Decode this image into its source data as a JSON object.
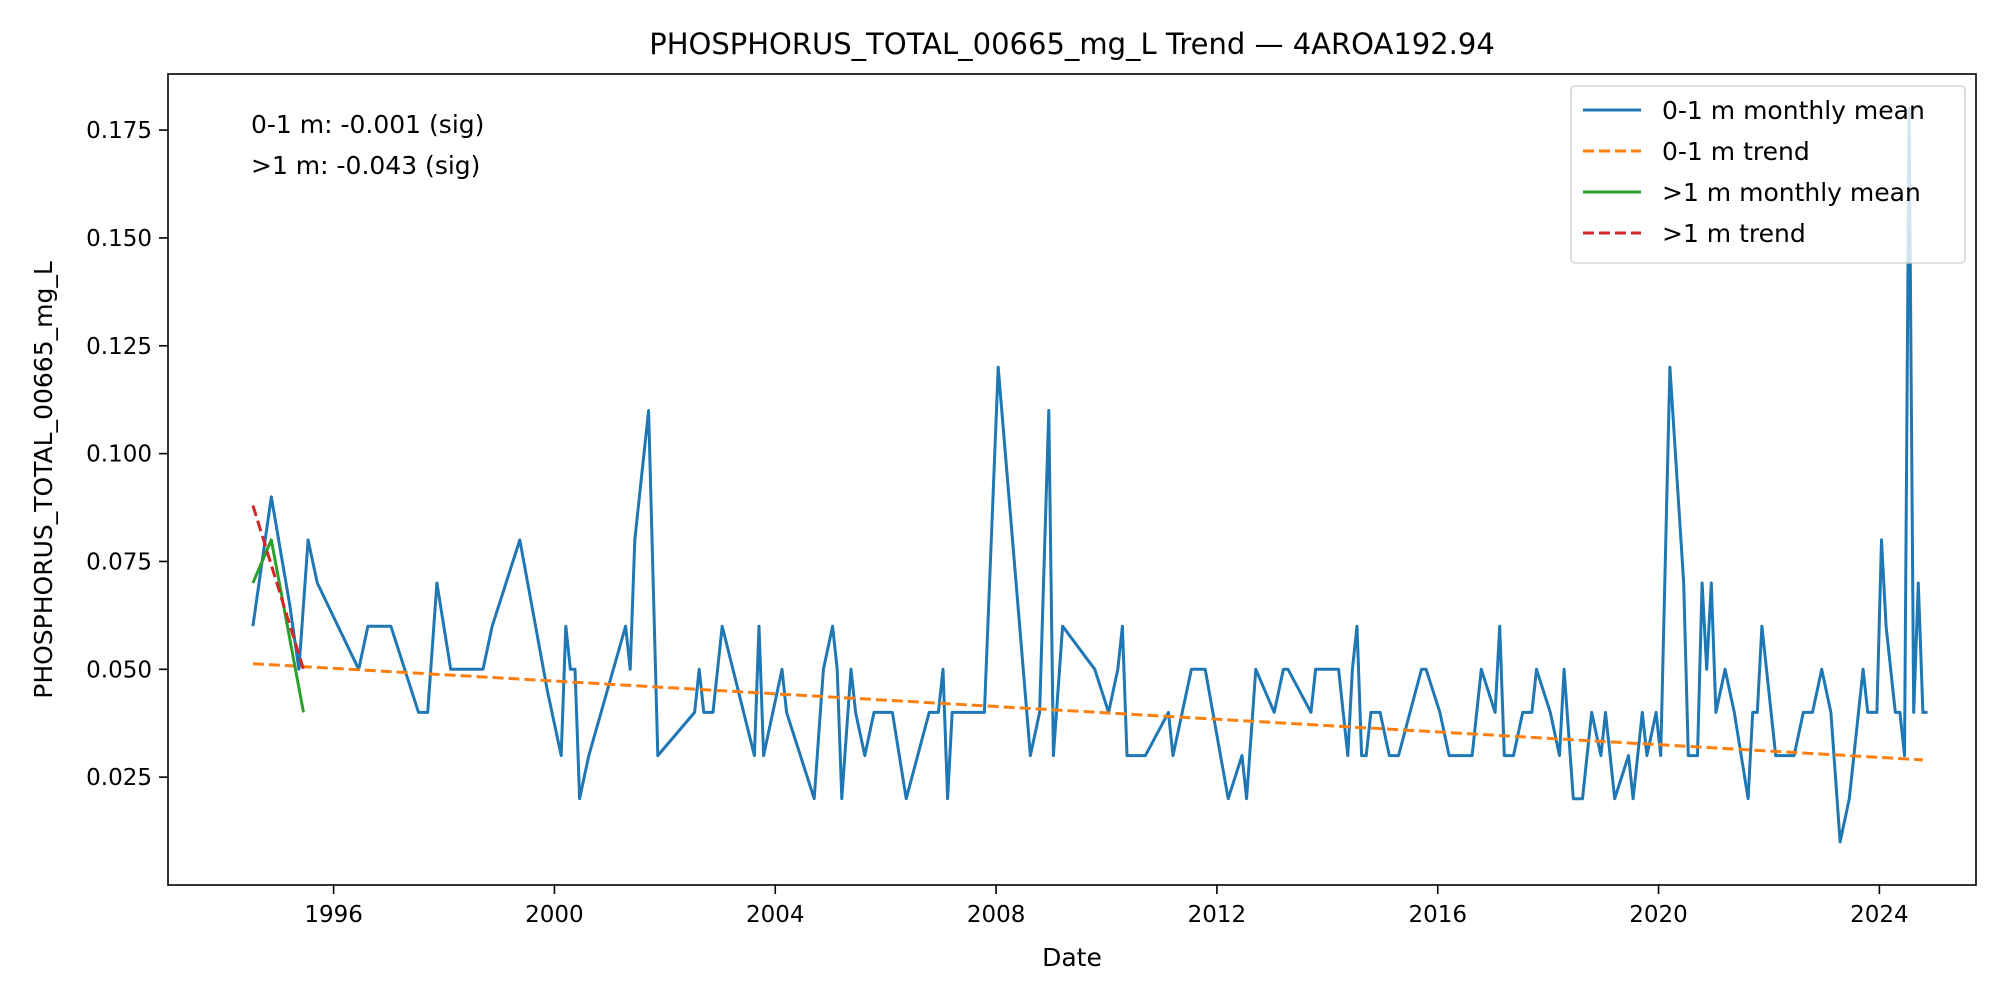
{
  "chart_data": {
    "type": "line",
    "title": "PHOSPHORUS_TOTAL_00665_mg_L Trend — 4AROA192.94",
    "xlabel": "Date",
    "ylabel": "PHOSPHORUS_TOTAL_00665_mg_L",
    "x_ticks": [
      "1996",
      "2000",
      "2004",
      "2008",
      "2012",
      "2016",
      "2020",
      "2024"
    ],
    "y_ticks": [
      "0.025",
      "0.050",
      "0.075",
      "0.100",
      "0.125",
      "0.150",
      "0.175"
    ],
    "xlim": [
      "1993-01-01",
      "2025-10-01"
    ],
    "ylim": [
      0.0,
      0.188
    ],
    "grid": false,
    "legend_position": "top-right",
    "annotations": [
      "0-1 m: -0.001 (sig)",
      ">1 m: -0.043 (sig)"
    ],
    "series": [
      {
        "name": "0-1 m monthly mean",
        "style": "solid",
        "color": "#1f77b4",
        "points": [
          [
            "1994-07-15",
            0.06
          ],
          [
            "1994-11-15",
            0.09
          ],
          [
            "1995-03-15",
            0.065
          ],
          [
            "1995-05-15",
            0.05
          ],
          [
            "1995-07-15",
            0.08
          ],
          [
            "1995-09-15",
            0.07
          ],
          [
            "1996-06-15",
            0.05
          ],
          [
            "1996-08-15",
            0.06
          ],
          [
            "1997-01-15",
            0.06
          ],
          [
            "1997-07-15",
            0.04
          ],
          [
            "1997-09-15",
            0.04
          ],
          [
            "1997-11-15",
            0.07
          ],
          [
            "1998-02-15",
            0.05
          ],
          [
            "1998-09-15",
            0.05
          ],
          [
            "1998-11-15",
            0.06
          ],
          [
            "1999-05-15",
            0.08
          ],
          [
            "1999-11-15",
            0.045
          ],
          [
            "2000-02-15",
            0.03
          ],
          [
            "2000-03-15",
            0.06
          ],
          [
            "2000-04-15",
            0.05
          ],
          [
            "2000-05-15",
            0.05
          ],
          [
            "2000-06-15",
            0.02
          ],
          [
            "2000-08-15",
            0.03
          ],
          [
            "2001-04-15",
            0.06
          ],
          [
            "2001-05-15",
            0.05
          ],
          [
            "2001-06-15",
            0.08
          ],
          [
            "2001-09-15",
            0.11
          ],
          [
            "2001-11-15",
            0.03
          ],
          [
            "2002-07-15",
            0.04
          ],
          [
            "2002-08-15",
            0.05
          ],
          [
            "2002-09-15",
            0.04
          ],
          [
            "2002-11-15",
            0.04
          ],
          [
            "2003-01-15",
            0.06
          ],
          [
            "2003-08-15",
            0.03
          ],
          [
            "2003-09-15",
            0.06
          ],
          [
            "2003-10-15",
            0.03
          ],
          [
            "2004-02-15",
            0.05
          ],
          [
            "2004-03-15",
            0.04
          ],
          [
            "2004-09-15",
            0.02
          ],
          [
            "2004-11-15",
            0.05
          ],
          [
            "2005-01-15",
            0.06
          ],
          [
            "2005-02-15",
            0.05
          ],
          [
            "2005-03-15",
            0.02
          ],
          [
            "2005-05-15",
            0.05
          ],
          [
            "2005-06-15",
            0.04
          ],
          [
            "2005-08-15",
            0.03
          ],
          [
            "2005-10-15",
            0.04
          ],
          [
            "2006-02-15",
            0.04
          ],
          [
            "2006-05-15",
            0.02
          ],
          [
            "2006-10-15",
            0.04
          ],
          [
            "2006-12-15",
            0.04
          ],
          [
            "2007-01-15",
            0.05
          ],
          [
            "2007-02-15",
            0.02
          ],
          [
            "2007-03-15",
            0.04
          ],
          [
            "2007-10-15",
            0.04
          ],
          [
            "2008-01-15",
            0.12
          ],
          [
            "2008-08-15",
            0.03
          ],
          [
            "2008-10-15",
            0.04
          ],
          [
            "2008-12-15",
            0.11
          ],
          [
            "2009-01-15",
            0.03
          ],
          [
            "2009-03-15",
            0.06
          ],
          [
            "2009-10-15",
            0.05
          ],
          [
            "2010-01-15",
            0.04
          ],
          [
            "2010-03-15",
            0.05
          ],
          [
            "2010-04-15",
            0.06
          ],
          [
            "2010-05-15",
            0.03
          ],
          [
            "2010-09-15",
            0.03
          ],
          [
            "2011-02-15",
            0.04
          ],
          [
            "2011-03-15",
            0.03
          ],
          [
            "2011-07-15",
            0.05
          ],
          [
            "2011-09-15",
            0.05
          ],
          [
            "2011-10-15",
            0.05
          ],
          [
            "2012-03-15",
            0.02
          ],
          [
            "2012-06-15",
            0.03
          ],
          [
            "2012-07-15",
            0.02
          ],
          [
            "2012-09-15",
            0.05
          ],
          [
            "2013-01-15",
            0.04
          ],
          [
            "2013-03-15",
            0.05
          ],
          [
            "2013-04-15",
            0.05
          ],
          [
            "2013-09-15",
            0.04
          ],
          [
            "2013-10-15",
            0.05
          ],
          [
            "2014-03-15",
            0.05
          ],
          [
            "2014-05-15",
            0.03
          ],
          [
            "2014-06-15",
            0.05
          ],
          [
            "2014-07-15",
            0.06
          ],
          [
            "2014-08-15",
            0.03
          ],
          [
            "2014-09-15",
            0.03
          ],
          [
            "2014-10-15",
            0.04
          ],
          [
            "2014-12-15",
            0.04
          ],
          [
            "2015-02-15",
            0.03
          ],
          [
            "2015-04-15",
            0.03
          ],
          [
            "2015-09-15",
            0.05
          ],
          [
            "2015-10-15",
            0.05
          ],
          [
            "2016-01-15",
            0.04
          ],
          [
            "2016-03-15",
            0.03
          ],
          [
            "2016-08-15",
            0.03
          ],
          [
            "2016-10-15",
            0.05
          ],
          [
            "2017-01-15",
            0.04
          ],
          [
            "2017-02-15",
            0.06
          ],
          [
            "2017-03-15",
            0.03
          ],
          [
            "2017-05-15",
            0.03
          ],
          [
            "2017-07-15",
            0.04
          ],
          [
            "2017-09-15",
            0.04
          ],
          [
            "2017-10-15",
            0.05
          ],
          [
            "2018-01-15",
            0.04
          ],
          [
            "2018-03-15",
            0.03
          ],
          [
            "2018-04-15",
            0.05
          ],
          [
            "2018-06-15",
            0.02
          ],
          [
            "2018-08-15",
            0.02
          ],
          [
            "2018-10-15",
            0.04
          ],
          [
            "2018-12-15",
            0.03
          ],
          [
            "2019-01-15",
            0.04
          ],
          [
            "2019-03-15",
            0.02
          ],
          [
            "2019-06-15",
            0.03
          ],
          [
            "2019-07-15",
            0.02
          ],
          [
            "2019-09-15",
            0.04
          ],
          [
            "2019-10-15",
            0.03
          ],
          [
            "2019-12-15",
            0.04
          ],
          [
            "2020-01-15",
            0.03
          ],
          [
            "2020-03-15",
            0.12
          ],
          [
            "2020-06-15",
            0.07
          ],
          [
            "2020-07-15",
            0.03
          ],
          [
            "2020-09-15",
            0.03
          ],
          [
            "2020-10-15",
            0.07
          ],
          [
            "2020-11-15",
            0.05
          ],
          [
            "2020-12-15",
            0.07
          ],
          [
            "2021-01-15",
            0.04
          ],
          [
            "2021-03-15",
            0.05
          ],
          [
            "2021-05-15",
            0.04
          ],
          [
            "2021-08-15",
            0.02
          ],
          [
            "2021-09-15",
            0.04
          ],
          [
            "2021-10-15",
            0.04
          ],
          [
            "2021-11-15",
            0.06
          ],
          [
            "2022-02-15",
            0.03
          ],
          [
            "2022-04-15",
            0.03
          ],
          [
            "2022-06-15",
            0.03
          ],
          [
            "2022-08-15",
            0.04
          ],
          [
            "2022-10-15",
            0.04
          ],
          [
            "2022-12-15",
            0.05
          ],
          [
            "2023-02-15",
            0.04
          ],
          [
            "2023-04-15",
            0.01
          ],
          [
            "2023-06-15",
            0.02
          ],
          [
            "2023-08-15",
            0.04
          ],
          [
            "2023-09-15",
            0.05
          ],
          [
            "2023-10-15",
            0.04
          ],
          [
            "2023-12-15",
            0.04
          ],
          [
            "2024-01-15",
            0.08
          ],
          [
            "2024-02-15",
            0.06
          ],
          [
            "2024-04-15",
            0.04
          ],
          [
            "2024-05-15",
            0.04
          ],
          [
            "2024-06-15",
            0.03
          ],
          [
            "2024-07-15",
            0.18
          ],
          [
            "2024-08-15",
            0.04
          ],
          [
            "2024-09-15",
            0.07
          ],
          [
            "2024-10-15",
            0.04
          ],
          [
            "2024-11-15",
            0.04
          ]
        ]
      },
      {
        "name": "0-1 m trend",
        "style": "dashed",
        "color": "#ff7f0e",
        "points": [
          [
            "1994-07-15",
            0.0513
          ],
          [
            "2024-10-15",
            0.029
          ]
        ]
      },
      {
        "name": ">1 m monthly mean",
        "style": "solid",
        "color": "#2ca02c",
        "points": [
          [
            "1994-07-15",
            0.07
          ],
          [
            "1994-11-15",
            0.08
          ],
          [
            "1995-06-15",
            0.04
          ]
        ]
      },
      {
        "name": ">1 m trend",
        "style": "dashed",
        "color": "#d62728",
        "points": [
          [
            "1994-07-15",
            0.088
          ],
          [
            "1995-06-15",
            0.05
          ]
        ]
      }
    ]
  }
}
